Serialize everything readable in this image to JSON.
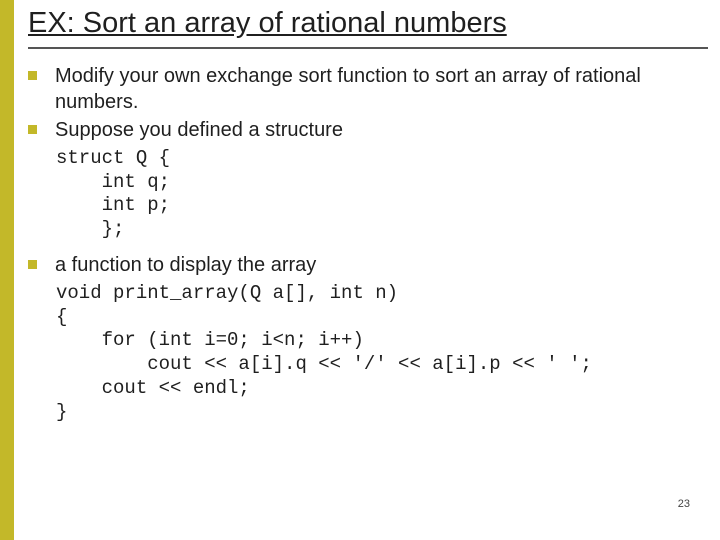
{
  "title": "EX: Sort an array of rational numbers",
  "bullets": {
    "b1": "Modify your own exchange sort function to sort an array of rational numbers.",
    "b2": "Suppose you defined a structure",
    "b3": "a function to display the array"
  },
  "code": {
    "struct": "struct Q {\n    int q;\n    int p;\n    };",
    "func": "void print_array(Q a[], int n)\n{\n    for (int i=0; i<n; i++)\n        cout << a[i].q << '/' << a[i].p << ' ';\n    cout << endl;\n}"
  },
  "pageNumber": "23",
  "colors": {
    "accent": "#c3b829",
    "text": "#1f1f1f",
    "rule": "#555555",
    "background": "#ffffff"
  },
  "fonts": {
    "body": "Verdana",
    "code": "Courier New",
    "title_size_pt": 29,
    "body_size_pt": 20,
    "code_size_pt": 19
  }
}
